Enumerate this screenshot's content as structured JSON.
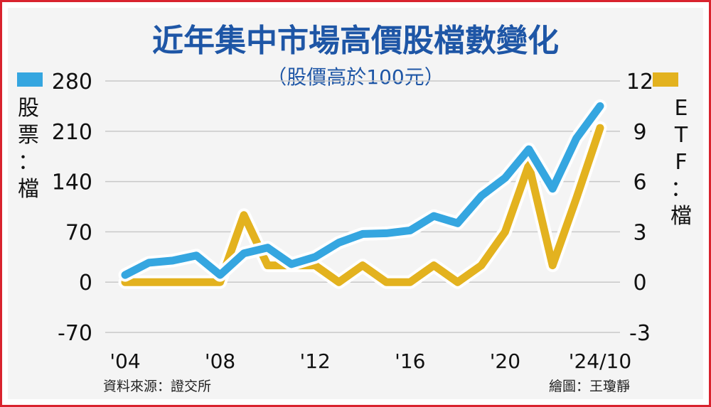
{
  "chart_data": {
    "type": "line",
    "title": "近年集中市場高價股檔數變化",
    "subtitle": "（股價高於100元）",
    "x_tick_labels": [
      "'04",
      "'08",
      "'12",
      "'16",
      "'20",
      "'24/10"
    ],
    "x": [
      2004,
      2005,
      2006,
      2007,
      2008,
      2009,
      2010,
      2011,
      2012,
      2013,
      2014,
      2015,
      2016,
      2017,
      2018,
      2019,
      2020,
      2021,
      2022,
      2023,
      2024
    ],
    "left_axis": {
      "label": "股票：檔",
      "ticks": [
        280,
        210,
        140,
        70,
        0,
        -70
      ],
      "ylim": [
        -70,
        280
      ]
    },
    "right_axis": {
      "label": "ETF：檔",
      "ticks": [
        12,
        9,
        6,
        3,
        0,
        -3
      ],
      "ylim": [
        -3,
        12
      ]
    },
    "series": [
      {
        "name": "股票",
        "axis": "left",
        "color": "#35a6e0",
        "values": [
          10,
          27,
          30,
          37,
          10,
          40,
          48,
          25,
          35,
          55,
          67,
          68,
          72,
          92,
          82,
          120,
          145,
          185,
          130,
          200,
          245
        ]
      },
      {
        "name": "ETF",
        "axis": "right",
        "color": "#e3b21f",
        "values": [
          0,
          0,
          0,
          0,
          0,
          4,
          1,
          1,
          1,
          0,
          1,
          0,
          0,
          1,
          0,
          1,
          3,
          7,
          1,
          5,
          9.2
        ]
      }
    ],
    "grid": true,
    "legend": "top-left and top-right"
  },
  "footer": {
    "source": "資料來源：證交所",
    "credit": "繪圖：王瓊靜"
  }
}
